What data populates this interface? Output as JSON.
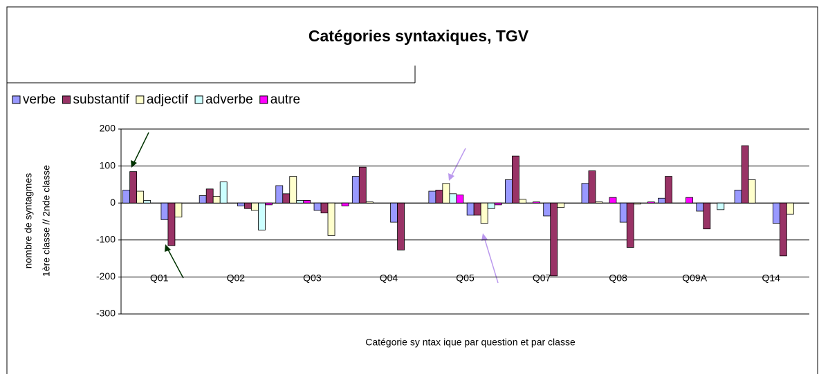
{
  "chart_data": {
    "type": "bar",
    "title": "Catégories syntaxiques, TGV",
    "y_label": [
      "nombre de syntagmes",
      "1ère classe // 2nde classe"
    ],
    "x_label": "Catégorie sy ntax ique par question et par classe",
    "categories": [
      "Q01",
      null,
      "Q02",
      null,
      "Q03",
      null,
      "Q04",
      null,
      "Q05",
      null,
      "Q07",
      null,
      "Q08",
      null,
      "Q09A",
      null,
      "Q14",
      null
    ],
    "series": [
      {
        "name": "verbe",
        "color": "#9999ff",
        "values": [
          35,
          -45,
          20,
          -8,
          47,
          -20,
          72,
          -52,
          32,
          -33,
          63,
          -35,
          53,
          -52,
          13,
          -22,
          35,
          -55
        ]
      },
      {
        "name": "substantif",
        "color": "#993366",
        "values": [
          85,
          -115,
          38,
          -15,
          25,
          -27,
          97,
          -127,
          35,
          -33,
          127,
          -197,
          87,
          -120,
          72,
          -70,
          155,
          -143
        ]
      },
      {
        "name": "adjectif",
        "color": "#ffffcc",
        "values": [
          32,
          -38,
          18,
          -20,
          72,
          -88,
          3,
          0,
          53,
          -55,
          10,
          -12,
          3,
          -3,
          0,
          0,
          63,
          -30
        ]
      },
      {
        "name": "adverbe",
        "color": "#ccffff",
        "values": [
          7,
          0,
          57,
          -73,
          7,
          0,
          0,
          0,
          25,
          -15,
          0,
          0,
          0,
          0,
          0,
          -18,
          0,
          0
        ]
      },
      {
        "name": "autre",
        "color": "#ff00ff",
        "values": [
          0,
          0,
          0,
          -5,
          7,
          -8,
          0,
          0,
          22,
          -5,
          3,
          0,
          15,
          3,
          15,
          0,
          0,
          0
        ]
      }
    ],
    "ylim": [
      -300,
      200
    ],
    "yticks": [
      -300,
      -200,
      -100,
      0,
      100,
      200
    ],
    "grid": true
  }
}
